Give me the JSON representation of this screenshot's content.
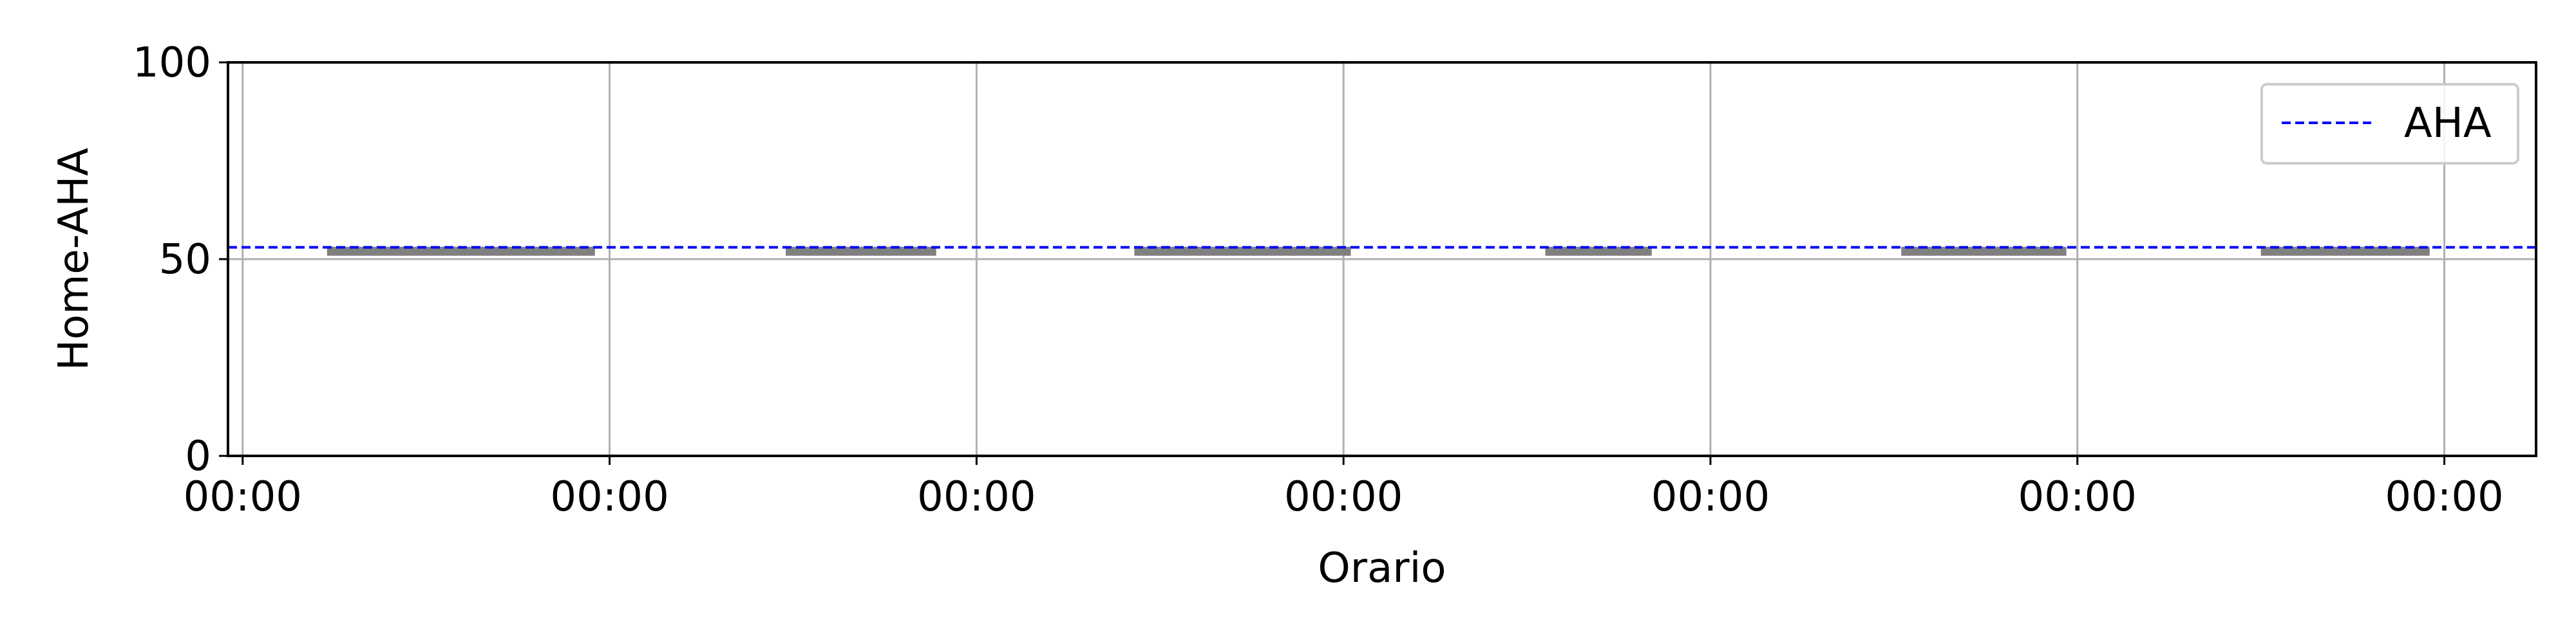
{
  "chart_data": {
    "type": "line",
    "title": "",
    "xlabel": "Orario",
    "ylabel": "Home-AHA",
    "ylim": [
      0,
      100
    ],
    "xlim": [
      -0.04,
      6.25
    ],
    "x_ticks": [
      {
        "value": 0,
        "label": "00:00"
      },
      {
        "value": 1,
        "label": "00:00"
      },
      {
        "value": 2,
        "label": "00:00"
      },
      {
        "value": 3,
        "label": "00:00"
      },
      {
        "value": 4,
        "label": "00:00"
      },
      {
        "value": 5,
        "label": "00:00"
      },
      {
        "value": 6,
        "label": "00:00"
      }
    ],
    "y_ticks": [
      {
        "value": 0,
        "label": "0"
      },
      {
        "value": 50,
        "label": "50"
      },
      {
        "value": 100,
        "label": "100"
      }
    ],
    "grid": true,
    "legend": {
      "placement": "top-right",
      "entries": [
        {
          "label": "AHA",
          "color": "#0000ff",
          "style": "dashed"
        }
      ]
    },
    "reference_line": {
      "name": "AHA",
      "y": 53,
      "color": "#0000ff",
      "style": "dashed"
    },
    "segments_color": "#808080",
    "segments": [
      {
        "x_start": 0.23,
        "x_end": 0.96,
        "y": 52
      },
      {
        "x_start": 1.48,
        "x_end": 1.89,
        "y": 52
      },
      {
        "x_start": 2.43,
        "x_end": 3.02,
        "y": 52
      },
      {
        "x_start": 3.55,
        "x_end": 3.84,
        "y": 52
      },
      {
        "x_start": 4.52,
        "x_end": 4.97,
        "y": 52
      },
      {
        "x_start": 5.5,
        "x_end": 5.96,
        "y": 52
      }
    ]
  }
}
